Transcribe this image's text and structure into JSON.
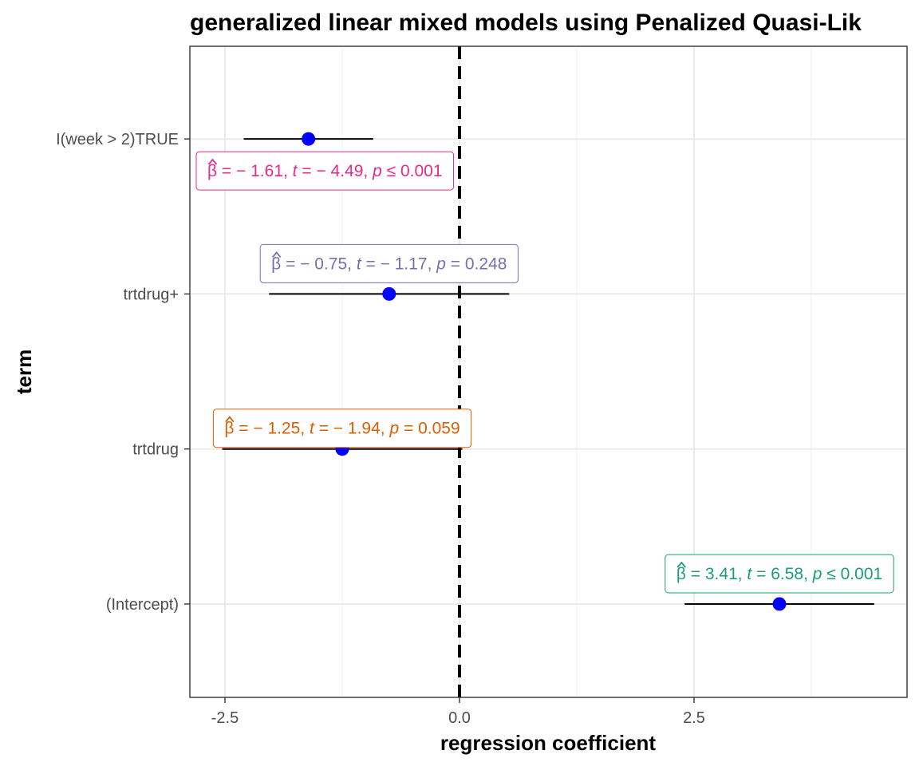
{
  "chart_data": {
    "type": "scatter",
    "title": "generalized linear mixed models  using Penalized Quasi-Lik",
    "xlabel": "regression coefficient",
    "ylabel": "term",
    "xlim": [
      -2.85,
      4.75
    ],
    "x_ticks": [
      -2.5,
      0.0,
      2.5
    ],
    "x_tick_labels": [
      "-2.5",
      "0.0",
      "2.5"
    ],
    "reference_line_x": 0,
    "grid": true,
    "theme": "bw",
    "point_color": "#0000ff",
    "terms": [
      {
        "term": "(Intercept)",
        "estimate": 3.41,
        "conf_low": 2.4,
        "conf_high": 4.42,
        "label": {
          "beta_text": "= 3.41,",
          "t_text": "= 6.58,",
          "p_text": "≤ 0.001"
        },
        "label_color": "#1b9e77"
      },
      {
        "term": "trtdrug",
        "estimate": -1.25,
        "conf_low": -2.53,
        "conf_high": 0.03,
        "label": {
          "beta_text": "= − 1.25,",
          "t_text": "= − 1.94,",
          "p_text": "= 0.059"
        },
        "label_color": "#d95f02"
      },
      {
        "term": "trtdrug+",
        "estimate": -0.75,
        "conf_low": -2.03,
        "conf_high": 0.53,
        "label": {
          "beta_text": "= − 0.75,",
          "t_text": "= − 1.17,",
          "p_text": "= 0.248"
        },
        "label_color": "#7570b3"
      },
      {
        "term": "I(week > 2)TRUE",
        "estimate": -1.61,
        "conf_low": -2.3,
        "conf_high": -0.92,
        "label": {
          "beta_text": "= − 1.61,",
          "t_text": "= − 4.49,",
          "p_text": "≤ 0.001"
        },
        "label_color": "#e7298a"
      }
    ]
  }
}
